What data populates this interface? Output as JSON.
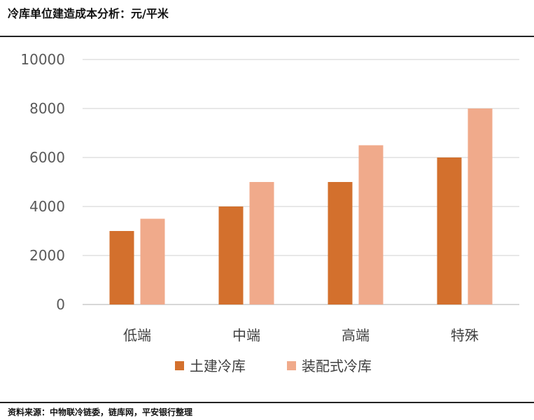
{
  "header": {
    "title": "冷库单位建造成本分析：元/平米"
  },
  "footer": {
    "source": "资料来源：中物联冷链委，链库网，平安银行整理"
  },
  "chart_data": {
    "type": "bar",
    "title": "冷库单位建造成本分析：元/平米",
    "categories": [
      "低端",
      "中端",
      "高端",
      "特殊"
    ],
    "series": [
      {
        "name": "土建冷库",
        "values": [
          3000,
          4000,
          5000,
          6000
        ],
        "color": "#D3702D"
      },
      {
        "name": "装配式冷库",
        "values": [
          3500,
          5000,
          6500,
          8000
        ],
        "color": "#F0AA8B"
      }
    ],
    "ylim": [
      0,
      10000
    ],
    "yticks": [
      "0",
      "2000",
      "4000",
      "6000",
      "8000",
      "10000"
    ],
    "grid": true,
    "legend": "bottom",
    "xlabel": "",
    "ylabel": ""
  }
}
